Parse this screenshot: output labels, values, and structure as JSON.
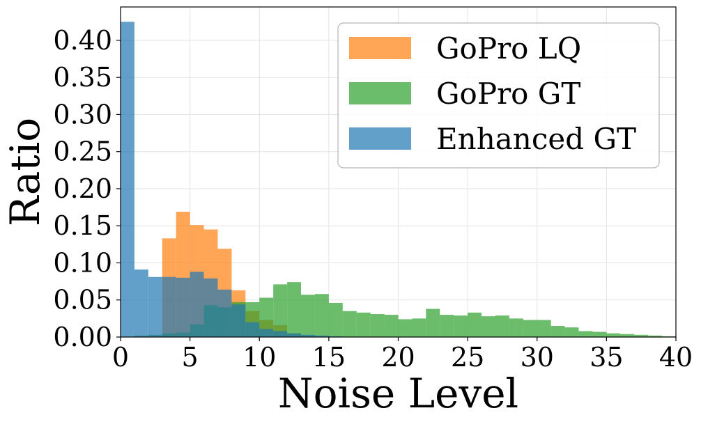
{
  "chart_data": {
    "type": "bar",
    "subtype": "overlapping-histogram",
    "title": "",
    "xlabel": "Noise Level",
    "ylabel": "Ratio",
    "xlim": [
      0,
      40
    ],
    "ylim": [
      0,
      0.445
    ],
    "bin_width": 1,
    "grid": true,
    "legend_position": "top-right",
    "x_ticks": [
      0,
      5,
      10,
      15,
      20,
      25,
      30,
      35,
      40
    ],
    "x_tick_labels": [
      "0",
      "5",
      "10",
      "15",
      "20",
      "25",
      "30",
      "35",
      "40"
    ],
    "y_ticks": [
      0.0,
      0.05,
      0.1,
      0.15,
      0.2,
      0.25,
      0.3,
      0.35,
      0.4
    ],
    "y_tick_labels": [
      "0.00",
      "0.05",
      "0.10",
      "0.15",
      "0.20",
      "0.25",
      "0.30",
      "0.35",
      "0.40"
    ],
    "bin_edges": [
      0,
      1,
      2,
      3,
      4,
      5,
      6,
      7,
      8,
      9,
      10,
      11,
      12,
      13,
      14,
      15,
      16,
      17,
      18,
      19,
      20,
      21,
      22,
      23,
      24,
      25,
      26,
      27,
      28,
      29,
      30,
      31,
      32,
      33,
      34,
      35,
      36,
      37,
      38,
      39,
      40
    ],
    "series": [
      {
        "name": "GoPro LQ",
        "color": "#ff7f0e",
        "values": [
          0.0,
          0.0,
          0.0,
          0.133,
          0.169,
          0.151,
          0.145,
          0.119,
          0.063,
          0.035,
          0.023,
          0.016,
          0.005,
          0.001,
          0.0,
          0,
          0,
          0,
          0,
          0,
          0,
          0,
          0,
          0,
          0,
          0,
          0,
          0,
          0,
          0,
          0,
          0,
          0,
          0,
          0,
          0,
          0,
          0,
          0,
          0
        ]
      },
      {
        "name": "GoPro GT",
        "color": "#2ca02c",
        "values": [
          0.0,
          0.002,
          0.003,
          0.005,
          0.006,
          0.017,
          0.043,
          0.04,
          0.047,
          0.047,
          0.053,
          0.071,
          0.074,
          0.057,
          0.058,
          0.046,
          0.035,
          0.033,
          0.031,
          0.03,
          0.024,
          0.025,
          0.038,
          0.03,
          0.029,
          0.033,
          0.028,
          0.029,
          0.025,
          0.023,
          0.023,
          0.015,
          0.013,
          0.008,
          0.007,
          0.005,
          0.004,
          0.003,
          0.002,
          0.001
        ]
      },
      {
        "name": "Enhanced GT",
        "color": "#1f77b4",
        "values": [
          0.425,
          0.091,
          0.081,
          0.081,
          0.08,
          0.088,
          0.079,
          0.064,
          0.044,
          0.02,
          0.011,
          0.008,
          0.005,
          0.003,
          0.002,
          0.001,
          0,
          0,
          0,
          0,
          0,
          0,
          0,
          0,
          0,
          0,
          0,
          0,
          0,
          0,
          0,
          0,
          0,
          0,
          0,
          0,
          0,
          0,
          0,
          0
        ]
      }
    ],
    "legend_order": [
      "GoPro LQ",
      "GoPro GT",
      "Enhanced GT"
    ],
    "draw_order": [
      "GoPro LQ",
      "GoPro GT",
      "Enhanced GT"
    ],
    "bar_alpha": 0.7
  }
}
